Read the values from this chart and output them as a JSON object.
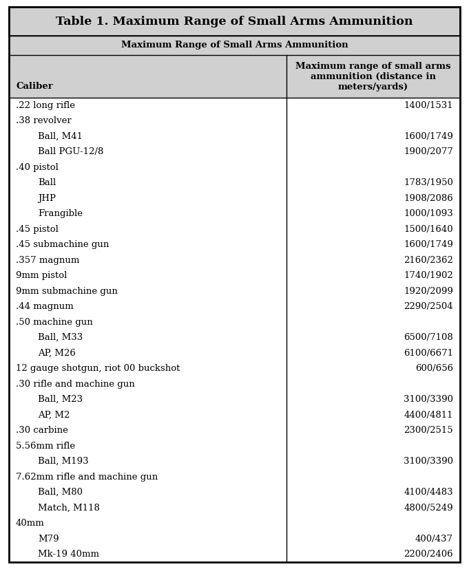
{
  "title": "Table 1. Maximum Range of Small Arms Ammunition",
  "col1_header": "Caliber",
  "col2_header_line1": "Maximum range of small arms",
  "col2_header_line2": "ammunition (distance in",
  "col2_header_line3": "meters/yards)",
  "merged_header": "Maximum Range of Small Arms Ammunition",
  "rows": [
    {
      "caliber": ".22 long rifle",
      "range": "1400/1531",
      "indent": false
    },
    {
      "caliber": ".38 revolver",
      "range": "",
      "indent": false
    },
    {
      "caliber": "Ball, M41",
      "range": "1600/1749",
      "indent": true
    },
    {
      "caliber": "Ball PGU-12/8",
      "range": "1900/2077",
      "indent": true
    },
    {
      "caliber": ".40 pistol",
      "range": "",
      "indent": false
    },
    {
      "caliber": "Ball",
      "range": "1783/1950",
      "indent": true
    },
    {
      "caliber": "JHP",
      "range": "1908/2086",
      "indent": true
    },
    {
      "caliber": "Frangible",
      "range": "1000/1093",
      "indent": true
    },
    {
      "caliber": ".45 pistol",
      "range": "1500/1640",
      "indent": false
    },
    {
      "caliber": ".45 submachine gun",
      "range": "1600/1749",
      "indent": false
    },
    {
      "caliber": ".357 magnum",
      "range": "2160/2362",
      "indent": false
    },
    {
      "caliber": "9mm pistol",
      "range": "1740/1902",
      "indent": false
    },
    {
      "caliber": "9mm submachine gun",
      "range": "1920/2099",
      "indent": false
    },
    {
      "caliber": ".44 magnum",
      "range": "2290/2504",
      "indent": false
    },
    {
      "caliber": ".50 machine gun",
      "range": "",
      "indent": false
    },
    {
      "caliber": "Ball, M33",
      "range": "6500/7108",
      "indent": true
    },
    {
      "caliber": "AP, M26",
      "range": "6100/6671",
      "indent": true
    },
    {
      "caliber": "12 gauge shotgun, riot 00 buckshot",
      "range": "600/656",
      "indent": false
    },
    {
      "caliber": ".30 rifle and machine gun",
      "range": "",
      "indent": false
    },
    {
      "caliber": "Ball, M23",
      "range": "3100/3390",
      "indent": true
    },
    {
      "caliber": "AP, M2",
      "range": "4400/4811",
      "indent": true
    },
    {
      "caliber": ".30 carbine",
      "range": "2300/2515",
      "indent": false
    },
    {
      "caliber": "5.56mm rifle",
      "range": "",
      "indent": false
    },
    {
      "caliber": "Ball, M193",
      "range": "3100/3390",
      "indent": true
    },
    {
      "caliber": "7.62mm rifle and machine gun",
      "range": "",
      "indent": false
    },
    {
      "caliber": "Ball, M80",
      "range": "4100/4483",
      "indent": true
    },
    {
      "caliber": "Match, M118",
      "range": "4800/5249",
      "indent": true
    },
    {
      "caliber": "40mm",
      "range": "",
      "indent": false
    },
    {
      "caliber": "M79",
      "range": "400/437",
      "indent": true
    },
    {
      "caliber": "Mk-19 40mm",
      "range": "2200/2406",
      "indent": true
    }
  ],
  "bg_color_header": "#d0d0d0",
  "bg_color_data": "#ffffff",
  "border_color": "#000000",
  "title_fontsize": 12.5,
  "header_fontsize": 9.5,
  "data_fontsize": 9.5
}
